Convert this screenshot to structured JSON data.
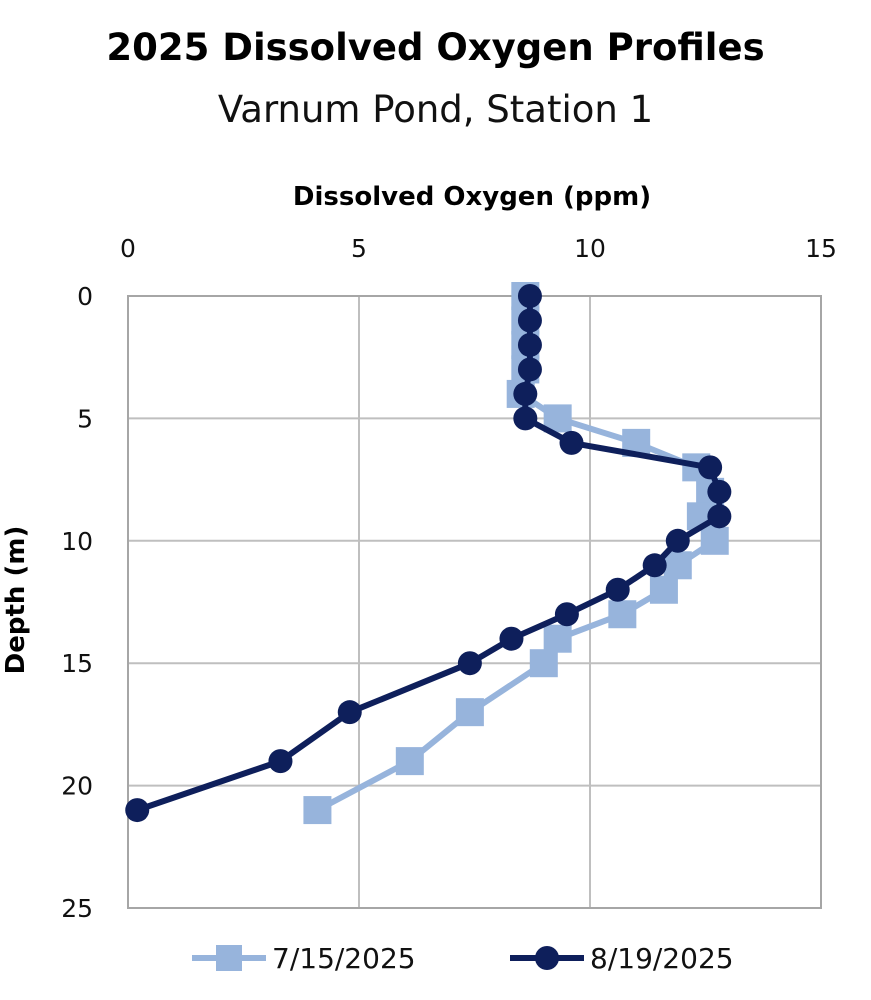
{
  "chart_data": {
    "type": "line",
    "title": "2025 Dissolved Oxygen Profiles",
    "subtitle": "Varnum Pond, Station 1",
    "xlabel": "Dissolved Oxygen (ppm)",
    "ylabel": "Depth (m)",
    "xlim": [
      0,
      15
    ],
    "ylim": [
      0,
      25
    ],
    "y_inverted": true,
    "x_axis_position": "top",
    "x_ticks": [
      "0",
      "5",
      "10",
      "15"
    ],
    "y_ticks": [
      "0",
      "5",
      "10",
      "15",
      "20",
      "25"
    ],
    "grid": true,
    "legend_position": "bottom",
    "series": [
      {
        "name": "7/15/2025",
        "color": "#97b4dc",
        "marker": "square",
        "points": [
          {
            "x": 8.6,
            "y": 0
          },
          {
            "x": 8.6,
            "y": 1
          },
          {
            "x": 8.6,
            "y": 2
          },
          {
            "x": 8.6,
            "y": 3
          },
          {
            "x": 8.5,
            "y": 4
          },
          {
            "x": 9.3,
            "y": 5
          },
          {
            "x": 11.0,
            "y": 6
          },
          {
            "x": 12.3,
            "y": 7
          },
          {
            "x": 12.6,
            "y": 8
          },
          {
            "x": 12.4,
            "y": 9
          },
          {
            "x": 12.7,
            "y": 10
          },
          {
            "x": 11.9,
            "y": 11
          },
          {
            "x": 11.6,
            "y": 12
          },
          {
            "x": 10.7,
            "y": 13
          },
          {
            "x": 9.3,
            "y": 14
          },
          {
            "x": 9.0,
            "y": 15
          },
          {
            "x": 7.4,
            "y": 17
          },
          {
            "x": 6.1,
            "y": 19
          },
          {
            "x": 4.1,
            "y": 21
          }
        ]
      },
      {
        "name": "8/19/2025",
        "color": "#0e1f5b",
        "marker": "circle",
        "points": [
          {
            "x": 8.7,
            "y": 0
          },
          {
            "x": 8.7,
            "y": 1
          },
          {
            "x": 8.7,
            "y": 2
          },
          {
            "x": 8.7,
            "y": 3
          },
          {
            "x": 8.6,
            "y": 4
          },
          {
            "x": 8.6,
            "y": 5
          },
          {
            "x": 9.6,
            "y": 6
          },
          {
            "x": 12.6,
            "y": 7
          },
          {
            "x": 12.8,
            "y": 8
          },
          {
            "x": 12.8,
            "y": 9
          },
          {
            "x": 11.9,
            "y": 10
          },
          {
            "x": 11.4,
            "y": 11
          },
          {
            "x": 10.6,
            "y": 12
          },
          {
            "x": 9.5,
            "y": 13
          },
          {
            "x": 8.3,
            "y": 14
          },
          {
            "x": 7.4,
            "y": 15
          },
          {
            "x": 4.8,
            "y": 17
          },
          {
            "x": 3.3,
            "y": 19
          },
          {
            "x": 0.2,
            "y": 21
          }
        ]
      }
    ]
  }
}
